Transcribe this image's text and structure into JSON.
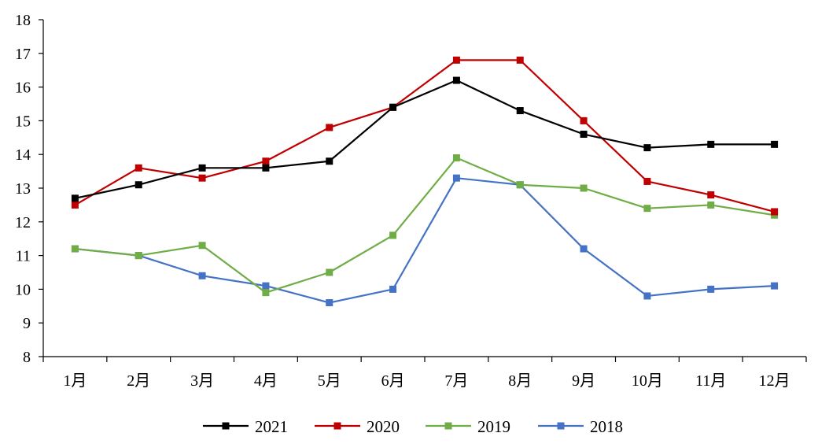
{
  "chart_data": {
    "type": "line",
    "title": "",
    "xlabel": "",
    "ylabel": "",
    "categories": [
      "1月",
      "2月",
      "3月",
      "4月",
      "5月",
      "6月",
      "7月",
      "8月",
      "9月",
      "10月",
      "11月",
      "12月"
    ],
    "ylim": [
      8,
      18
    ],
    "yticks": [
      8,
      9,
      10,
      11,
      12,
      13,
      14,
      15,
      16,
      17,
      18
    ],
    "grid": false,
    "legend_position": "bottom",
    "marker": "square",
    "series": [
      {
        "name": "2021",
        "color": "#000000",
        "values": [
          12.7,
          13.1,
          13.6,
          13.6,
          13.8,
          15.4,
          16.2,
          15.3,
          14.6,
          14.2,
          14.3,
          14.3
        ]
      },
      {
        "name": "2020",
        "color": "#C00000",
        "values": [
          12.5,
          13.6,
          13.3,
          13.8,
          14.8,
          15.4,
          16.8,
          16.8,
          15.0,
          13.2,
          12.8,
          12.3
        ]
      },
      {
        "name": "2019",
        "color": "#70AD47",
        "values": [
          11.2,
          11.0,
          11.3,
          9.9,
          10.5,
          11.6,
          13.9,
          13.1,
          13.0,
          12.4,
          12.5,
          12.2
        ]
      },
      {
        "name": "2018",
        "color": "#4472C4",
        "values": [
          11.2,
          11.0,
          10.4,
          10.1,
          9.6,
          10.0,
          13.3,
          13.1,
          11.2,
          9.8,
          10.0,
          10.1
        ]
      }
    ]
  }
}
